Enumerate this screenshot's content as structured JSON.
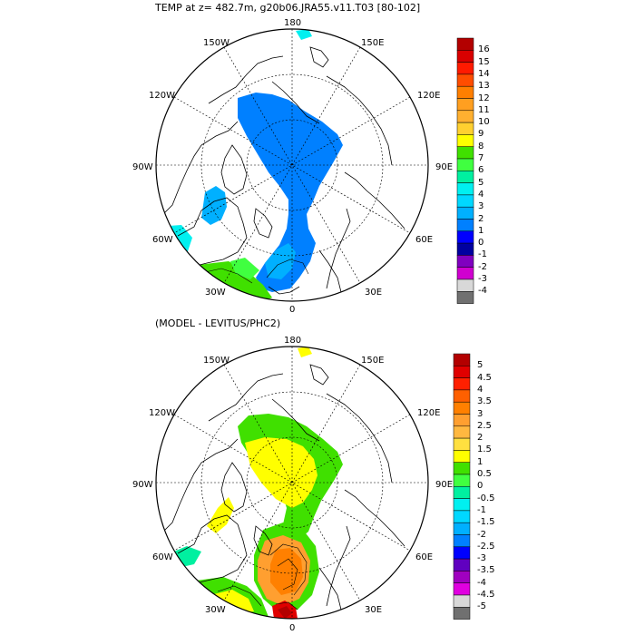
{
  "title": "TEMP at z= 482.7m, g20b06.JRA55.v11.T03 [80-102]",
  "diff_title": "(MODEL - LEVITUS/PHC2)",
  "longitude_labels": {
    "top": "180",
    "upper_left": "150W",
    "upper_right": "150E",
    "left_high": "120W",
    "right_high": "120E",
    "left_mid": "90W",
    "right_mid": "90E",
    "left_low": "60W",
    "right_low": "60E",
    "bottom_left": "30W",
    "bottom_right": "30E",
    "bottom": "0"
  },
  "colorbar_top": {
    "labels": [
      "16",
      "15",
      "14",
      "13",
      "12",
      "11",
      "10",
      "9",
      "8",
      "7",
      "6",
      "5",
      "4",
      "3",
      "2",
      "1",
      "0",
      "-1",
      "-2",
      "-3",
      "-4"
    ],
    "colors": [
      "#b30000",
      "#d90000",
      "#ff1a00",
      "#ff4d00",
      "#ff7f00",
      "#ff9f20",
      "#ffb030",
      "#ffd030",
      "#ffff00",
      "#40e000",
      "#40ff40",
      "#00f0a0",
      "#00f0f0",
      "#00d8ff",
      "#00b0ff",
      "#0080ff",
      "#0000ff",
      "#0000a0",
      "#8000c0",
      "#d000d0",
      "#d8d8d8",
      "#707070"
    ]
  },
  "colorbar_bottom": {
    "labels": [
      "5",
      "4.5",
      "4",
      "3.5",
      "3",
      "2.5",
      "2",
      "1.5",
      "1",
      "0.5",
      "0",
      "-0.5",
      "-1",
      "-1.5",
      "-2",
      "-2.5",
      "-3",
      "-3.5",
      "-4",
      "-4.5",
      "-5"
    ],
    "colors": [
      "#b30000",
      "#e00000",
      "#ff2000",
      "#ff6000",
      "#ff8000",
      "#ff9f30",
      "#ffb840",
      "#ffe040",
      "#ffff00",
      "#40e000",
      "#40ff40",
      "#00f0a0",
      "#00f0f0",
      "#00d8ff",
      "#00b0ff",
      "#0080ff",
      "#0000ff",
      "#6000c0",
      "#a000c0",
      "#e000e0",
      "#d8d8d8",
      "#707070"
    ]
  }
}
